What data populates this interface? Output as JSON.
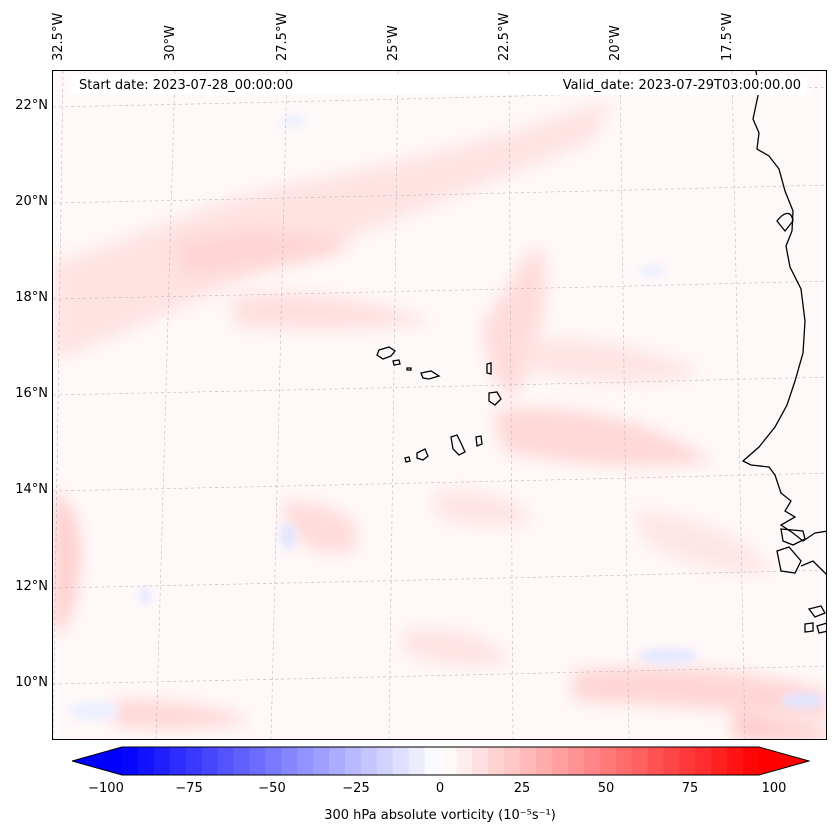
{
  "map": {
    "start_date": "Start date: 2023-07-28_00:00:00",
    "valid_date": "Valid_date: 2023-07-29T03:00:00.00",
    "longitude_labels": [
      "32.5°W",
      "30°W",
      "27.5°W",
      "25°W",
      "22.5°W",
      "20°W",
      "17.5°W"
    ],
    "latitude_labels": [
      "22°N",
      "20°N",
      "18°N",
      "16°N",
      "14°N",
      "12°N",
      "10°N"
    ],
    "field": "300 hPa absolute vorticity",
    "features": [
      "Cabo Verde islands",
      "West African coastline"
    ]
  },
  "colorbar": {
    "label": "300 hPa absolute vorticity (10⁻⁵s⁻¹)",
    "ticks": [
      "−100",
      "−75",
      "−50",
      "−25",
      "0",
      "25",
      "50",
      "75",
      "100"
    ],
    "min": -100,
    "max": 100,
    "colors": {
      "low": "#0000ff",
      "mid": "#ffffff",
      "high": "#ff0000"
    }
  }
}
